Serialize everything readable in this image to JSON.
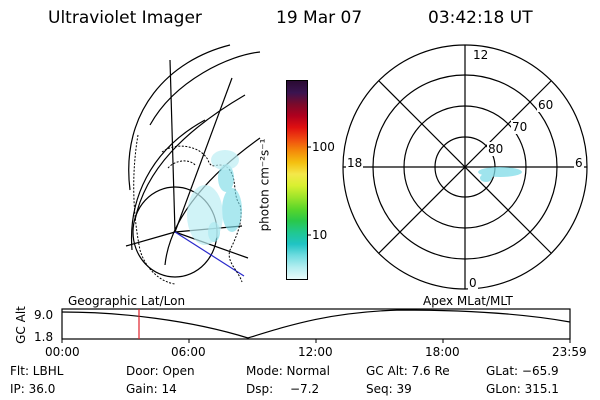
{
  "header": {
    "title": "Ultraviolet Imager",
    "date": "19 Mar 07",
    "time": "03:42:18 UT"
  },
  "colorbar": {
    "label": "photon cm⁻²s⁻¹",
    "ticks": [
      "100",
      "10"
    ],
    "colors": [
      "#2a0a33",
      "#3a1450",
      "#7a0a2a",
      "#b0001e",
      "#e01010",
      "#f04a10",
      "#f48a0a",
      "#f4c010",
      "#f4e84a",
      "#d8f030",
      "#9ce42a",
      "#5ad62a",
      "#2ac84a",
      "#20c890",
      "#20c4c4",
      "#70dce0",
      "#b4eef0",
      "#e8fafa"
    ]
  },
  "polar_plot": {
    "labels": {
      "top": "12",
      "left": "18",
      "right": "6",
      "bottom": "0"
    },
    "ring_labels": [
      "60",
      "70",
      "80"
    ]
  },
  "timeline": {
    "left_label": "Geographic Lat/Lon",
    "right_label": "Apex MLat/MLT",
    "axis_title": "GC Alt",
    "y_top": "9.0",
    "y_bottom": "1.8",
    "x_ticks": [
      "00:00",
      "06:00",
      "12:00",
      "18:00",
      "23:59"
    ],
    "marker_color": "#e0202a"
  },
  "status": {
    "row1": {
      "flt": "Flt: LBHL",
      "door": "Door: Open",
      "mode": "Mode: Normal",
      "gcalt": "GC Alt: 7.6 Re",
      "glat": "GLat: −65.9"
    },
    "row2": {
      "ip": "IP: 36.0",
      "gain": "Gain: 14",
      "dsp_label": "Dsp:",
      "dsp_value": "−7.2",
      "seq": "Seq: 39",
      "glon": "GLon: 315.1"
    }
  }
}
